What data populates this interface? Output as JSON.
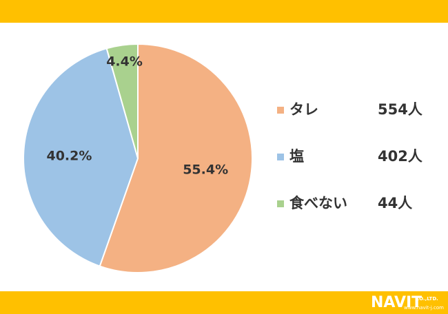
{
  "chart_data": {
    "type": "pie",
    "categories": [
      "タレ",
      "塩",
      "食べない"
    ],
    "values": [
      55.4,
      40.2,
      4.4
    ],
    "value_labels": [
      "55.4%",
      "40.2%",
      "4.4%"
    ],
    "colors": [
      "#f4b183",
      "#9dc3e6",
      "#a9d18e"
    ],
    "counts": [
      554,
      402,
      44
    ],
    "count_labels": [
      "554人",
      "402人",
      "44人"
    ],
    "legend": "right"
  },
  "logo": {
    "name": "NAVIT",
    "company": "CO.,LTD.",
    "url": "www.navit-j.com"
  }
}
